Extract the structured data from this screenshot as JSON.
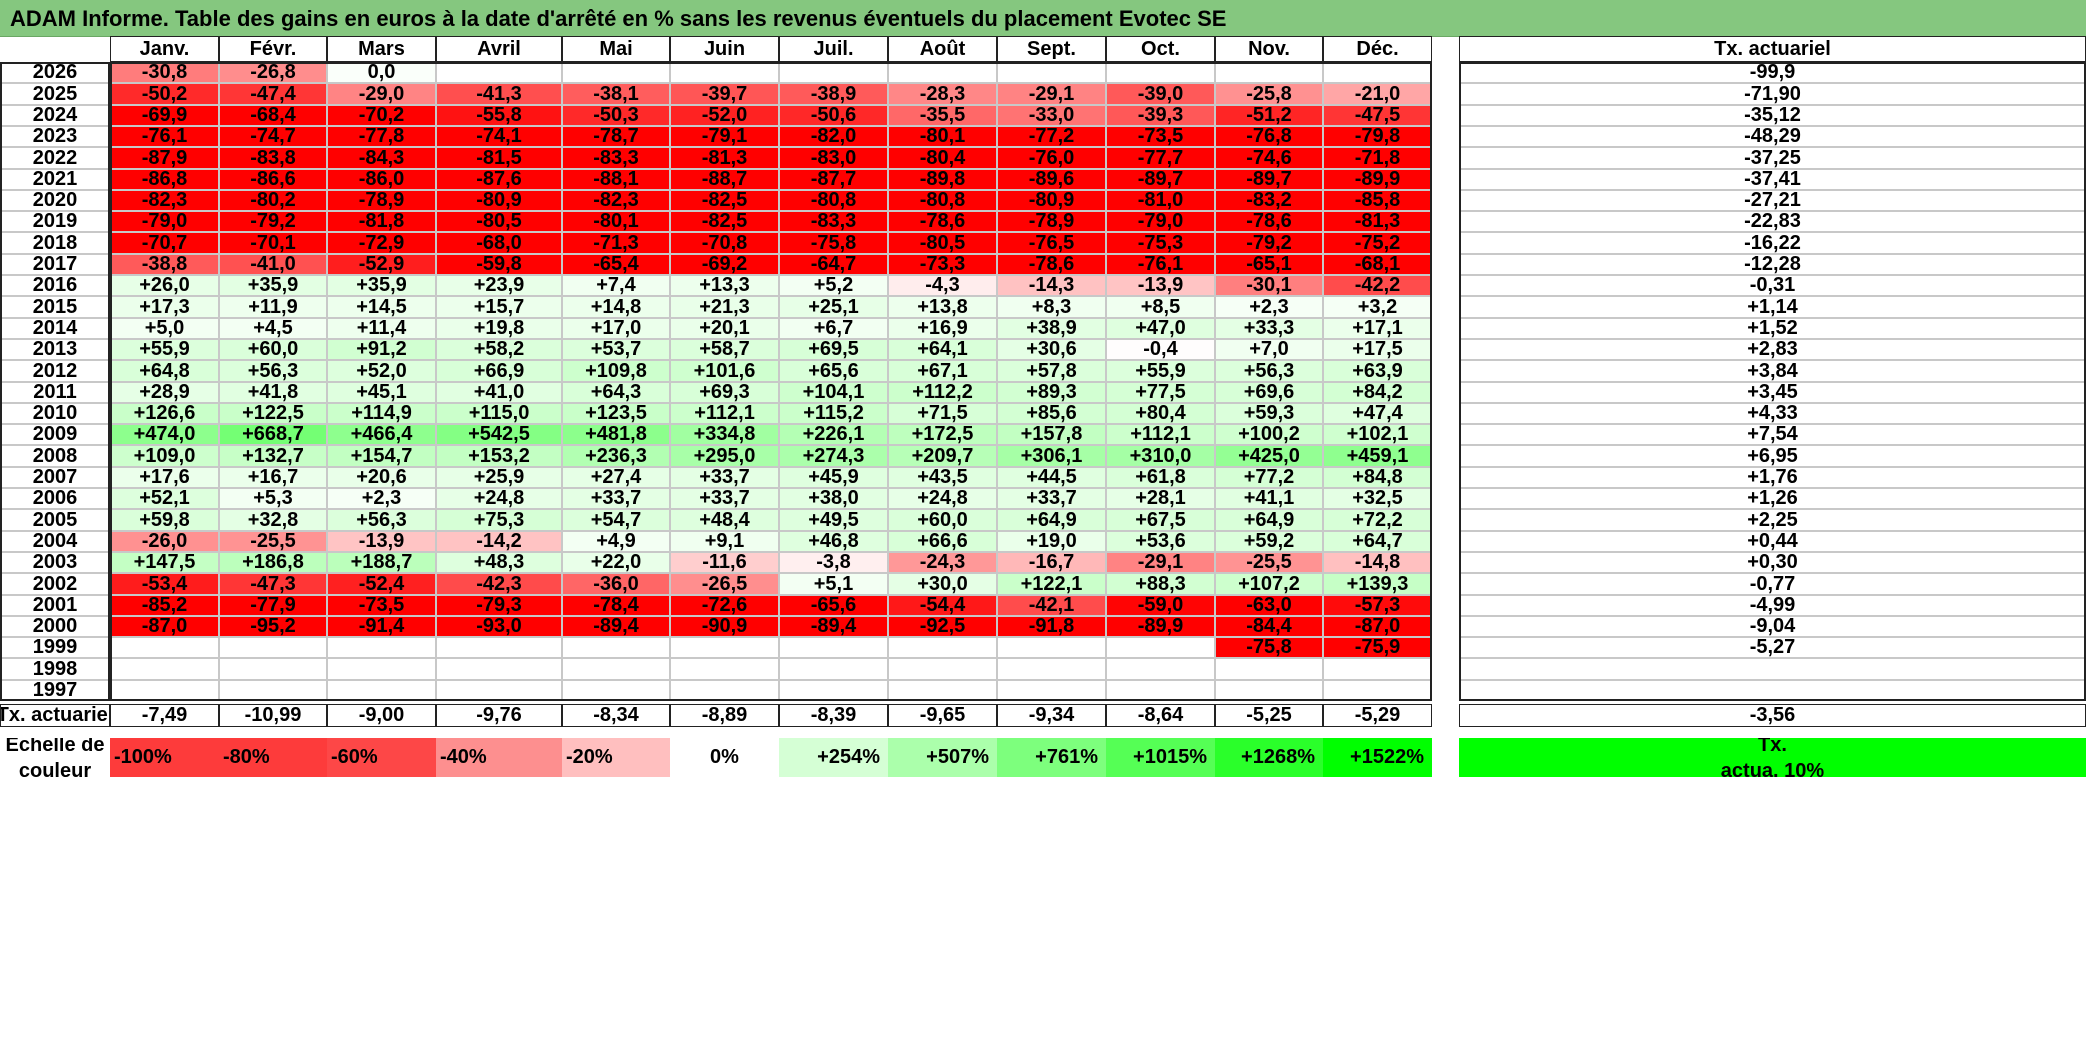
{
  "title": "ADAM Informe. Table des gains en euros à la date d'arrêté en % sans les revenus éventuels du placement Evotec SE",
  "months": [
    "Janv.",
    "Févr.",
    "Mars",
    "Avril",
    "Mai",
    "Juin",
    "Juil.",
    "Août",
    "Sept.",
    "Oct.",
    "Nov.",
    "Déc."
  ],
  "annual_header": "Tx. actuariel",
  "rows": [
    {
      "year": "2026",
      "values": [
        "-30,8",
        "-26,8",
        "0,0",
        "",
        "",
        "",
        "",
        "",
        "",
        "",
        "",
        ""
      ],
      "annual": "-99,9"
    },
    {
      "year": "2025",
      "values": [
        "-50,2",
        "-47,4",
        "-29,0",
        "-41,3",
        "-38,1",
        "-39,7",
        "-38,9",
        "-28,3",
        "-29,1",
        "-39,0",
        "-25,8",
        "-21,0"
      ],
      "annual": "-71,90"
    },
    {
      "year": "2024",
      "values": [
        "-69,9",
        "-68,4",
        "-70,2",
        "-55,8",
        "-50,3",
        "-52,0",
        "-50,6",
        "-35,5",
        "-33,0",
        "-39,3",
        "-51,2",
        "-47,5"
      ],
      "annual": "-35,12"
    },
    {
      "year": "2023",
      "values": [
        "-76,1",
        "-74,7",
        "-77,8",
        "-74,1",
        "-78,7",
        "-79,1",
        "-82,0",
        "-80,1",
        "-77,2",
        "-73,5",
        "-76,8",
        "-79,8"
      ],
      "annual": "-48,29"
    },
    {
      "year": "2022",
      "values": [
        "-87,9",
        "-83,8",
        "-84,3",
        "-81,5",
        "-83,3",
        "-81,3",
        "-83,0",
        "-80,4",
        "-76,0",
        "-77,7",
        "-74,6",
        "-71,8"
      ],
      "annual": "-37,25"
    },
    {
      "year": "2021",
      "values": [
        "-86,8",
        "-86,6",
        "-86,0",
        "-87,6",
        "-88,1",
        "-88,7",
        "-87,7",
        "-89,8",
        "-89,6",
        "-89,7",
        "-89,7",
        "-89,9"
      ],
      "annual": "-37,41"
    },
    {
      "year": "2020",
      "values": [
        "-82,3",
        "-80,2",
        "-78,9",
        "-80,9",
        "-82,3",
        "-82,5",
        "-80,8",
        "-80,8",
        "-80,9",
        "-81,0",
        "-83,2",
        "-85,8"
      ],
      "annual": "-27,21"
    },
    {
      "year": "2019",
      "values": [
        "-79,0",
        "-79,2",
        "-81,8",
        "-80,5",
        "-80,1",
        "-82,5",
        "-83,3",
        "-78,6",
        "-78,9",
        "-79,0",
        "-78,6",
        "-81,3"
      ],
      "annual": "-22,83"
    },
    {
      "year": "2018",
      "values": [
        "-70,7",
        "-70,1",
        "-72,9",
        "-68,0",
        "-71,3",
        "-70,8",
        "-75,8",
        "-80,5",
        "-76,5",
        "-75,3",
        "-79,2",
        "-75,2"
      ],
      "annual": "-16,22"
    },
    {
      "year": "2017",
      "values": [
        "-38,8",
        "-41,0",
        "-52,9",
        "-59,8",
        "-65,4",
        "-69,2",
        "-64,7",
        "-73,3",
        "-78,6",
        "-76,1",
        "-65,1",
        "-68,1"
      ],
      "annual": "-12,28"
    },
    {
      "year": "2016",
      "values": [
        "+26,0",
        "+35,9",
        "+35,9",
        "+23,9",
        "+7,4",
        "+13,3",
        "+5,2",
        "-4,3",
        "-14,3",
        "-13,9",
        "-30,1",
        "-42,2"
      ],
      "annual": "-0,31"
    },
    {
      "year": "2015",
      "values": [
        "+17,3",
        "+11,9",
        "+14,5",
        "+15,7",
        "+14,8",
        "+21,3",
        "+25,1",
        "+13,8",
        "+8,3",
        "+8,5",
        "+2,3",
        "+3,2"
      ],
      "annual": "+1,14"
    },
    {
      "year": "2014",
      "values": [
        "+5,0",
        "+4,5",
        "+11,4",
        "+19,8",
        "+17,0",
        "+20,1",
        "+6,7",
        "+16,9",
        "+38,9",
        "+47,0",
        "+33,3",
        "+17,1"
      ],
      "annual": "+1,52"
    },
    {
      "year": "2013",
      "values": [
        "+55,9",
        "+60,0",
        "+91,2",
        "+58,2",
        "+53,7",
        "+58,7",
        "+69,5",
        "+64,1",
        "+30,6",
        "-0,4",
        "+7,0",
        "+17,5"
      ],
      "annual": "+2,83"
    },
    {
      "year": "2012",
      "values": [
        "+64,8",
        "+56,3",
        "+52,0",
        "+66,9",
        "+109,8",
        "+101,6",
        "+65,6",
        "+67,1",
        "+57,8",
        "+55,9",
        "+56,3",
        "+63,9"
      ],
      "annual": "+3,84"
    },
    {
      "year": "2011",
      "values": [
        "+28,9",
        "+41,8",
        "+45,1",
        "+41,0",
        "+64,3",
        "+69,3",
        "+104,1",
        "+112,2",
        "+89,3",
        "+77,5",
        "+69,6",
        "+84,2"
      ],
      "annual": "+3,45"
    },
    {
      "year": "2010",
      "values": [
        "+126,6",
        "+122,5",
        "+114,9",
        "+115,0",
        "+123,5",
        "+112,1",
        "+115,2",
        "+71,5",
        "+85,6",
        "+80,4",
        "+59,3",
        "+47,4"
      ],
      "annual": "+4,33"
    },
    {
      "year": "2009",
      "values": [
        "+474,0",
        "+668,7",
        "+466,4",
        "+542,5",
        "+481,8",
        "+334,8",
        "+226,1",
        "+172,5",
        "+157,8",
        "+112,1",
        "+100,2",
        "+102,1"
      ],
      "annual": "+7,54"
    },
    {
      "year": "2008",
      "values": [
        "+109,0",
        "+132,7",
        "+154,7",
        "+153,2",
        "+236,3",
        "+295,0",
        "+274,3",
        "+209,7",
        "+306,1",
        "+310,0",
        "+425,0",
        "+459,1"
      ],
      "annual": "+6,95"
    },
    {
      "year": "2007",
      "values": [
        "+17,6",
        "+16,7",
        "+20,6",
        "+25,9",
        "+27,4",
        "+33,7",
        "+45,9",
        "+43,5",
        "+44,5",
        "+61,8",
        "+77,2",
        "+84,8"
      ],
      "annual": "+1,76"
    },
    {
      "year": "2006",
      "values": [
        "+52,1",
        "+5,3",
        "+2,3",
        "+24,8",
        "+33,7",
        "+33,7",
        "+38,0",
        "+24,8",
        "+33,7",
        "+28,1",
        "+41,1",
        "+32,5"
      ],
      "annual": "+1,26"
    },
    {
      "year": "2005",
      "values": [
        "+59,8",
        "+32,8",
        "+56,3",
        "+75,3",
        "+54,7",
        "+48,4",
        "+49,5",
        "+60,0",
        "+64,9",
        "+67,5",
        "+64,9",
        "+72,2"
      ],
      "annual": "+2,25"
    },
    {
      "year": "2004",
      "values": [
        "-26,0",
        "-25,5",
        "-13,9",
        "-14,2",
        "+4,9",
        "+9,1",
        "+46,8",
        "+66,6",
        "+19,0",
        "+53,6",
        "+59,2",
        "+64,7"
      ],
      "annual": "+0,44"
    },
    {
      "year": "2003",
      "values": [
        "+147,5",
        "+186,8",
        "+188,7",
        "+48,3",
        "+22,0",
        "-11,6",
        "-3,8",
        "-24,3",
        "-16,7",
        "-29,1",
        "-25,5",
        "-14,8"
      ],
      "annual": "+0,30"
    },
    {
      "year": "2002",
      "values": [
        "-53,4",
        "-47,3",
        "-52,4",
        "-42,3",
        "-36,0",
        "-26,5",
        "+5,1",
        "+30,0",
        "+122,1",
        "+88,3",
        "+107,2",
        "+139,3"
      ],
      "annual": "-0,77"
    },
    {
      "year": "2001",
      "values": [
        "-85,2",
        "-77,9",
        "-73,5",
        "-79,3",
        "-78,4",
        "-72,6",
        "-65,6",
        "-54,4",
        "-42,1",
        "-59,0",
        "-63,0",
        "-57,3"
      ],
      "annual": "-4,99"
    },
    {
      "year": "2000",
      "values": [
        "-87,0",
        "-95,2",
        "-91,4",
        "-93,0",
        "-89,4",
        "-90,9",
        "-89,4",
        "-92,5",
        "-91,8",
        "-89,9",
        "-84,4",
        "-87,0"
      ],
      "annual": "-9,04"
    },
    {
      "year": "1999",
      "values": [
        "",
        "",
        "",
        "",
        "",
        "",
        "",
        "",
        "",
        "",
        "-75,8",
        "-75,9"
      ],
      "annual": "-5,27"
    },
    {
      "year": "1998",
      "values": [
        "",
        "",
        "",
        "",
        "",
        "",
        "",
        "",
        "",
        "",
        "",
        ""
      ],
      "annual": ""
    },
    {
      "year": "1997",
      "values": [
        "",
        "",
        "",
        "",
        "",
        "",
        "",
        "",
        "",
        "",
        "",
        ""
      ],
      "annual": ""
    }
  ],
  "footer": {
    "label": "Tx. actuariel",
    "values": [
      "-7,49",
      "-10,99",
      "-9,00",
      "-9,76",
      "-8,34",
      "-8,89",
      "-8,39",
      "-9,65",
      "-9,34",
      "-8,64",
      "-5,25",
      "-5,29"
    ],
    "annual": "-3,56"
  },
  "legend": {
    "label_line1": "Echelle de",
    "label_line2": "couleur",
    "items": [
      {
        "text": "-100%",
        "color": "#fd3b3b",
        "align": "left"
      },
      {
        "text": "-80%",
        "color": "#fd3b3b",
        "align": "left"
      },
      {
        "text": "-60%",
        "color": "#fd4747",
        "align": "left"
      },
      {
        "text": "-40%",
        "color": "#fd8f8f",
        "align": "left"
      },
      {
        "text": "-20%",
        "color": "#ffbfbf",
        "align": "left"
      },
      {
        "text": "0%",
        "color": "#ffffff",
        "align": "center"
      },
      {
        "text": "+254%",
        "color": "#d5ffd5",
        "align": "right"
      },
      {
        "text": "+507%",
        "color": "#abffab",
        "align": "right"
      },
      {
        "text": "+761%",
        "color": "#7dff7d",
        "align": "right"
      },
      {
        "text": "+1015%",
        "color": "#55ff55",
        "align": "right"
      },
      {
        "text": "+1268%",
        "color": "#2aff2a",
        "align": "right"
      },
      {
        "text": "+1522%",
        "color": "#00ff00",
        "align": "right"
      }
    ],
    "annual_line1": "Tx.",
    "annual_line2": "actua. 10%",
    "annual_color": "#00ff00"
  },
  "colors": {
    "title_bg": "#85c77f",
    "negative": "#ff0000",
    "positive": "#00ff00"
  }
}
